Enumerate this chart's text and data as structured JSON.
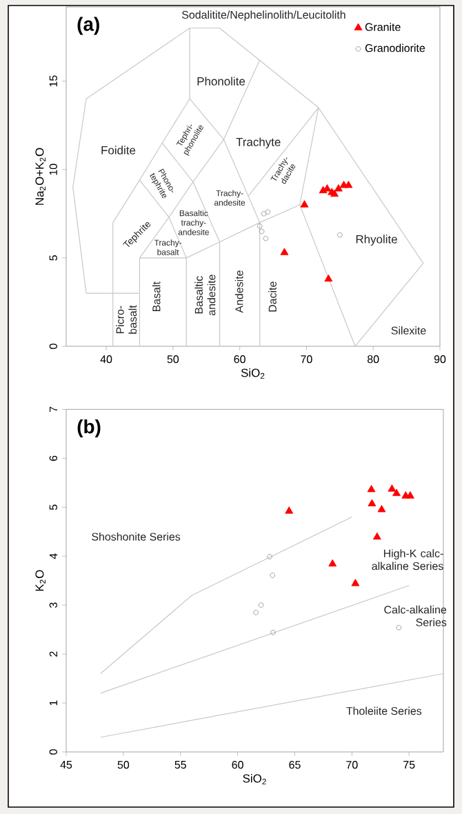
{
  "chart_data": [
    {
      "type": "scatter",
      "title": "(a)",
      "xlabel": "SiO$_{2}$",
      "ylabel": "Na$_{2}$O+K$_{2}$O",
      "xlim": [
        34,
        90
      ],
      "ylim": [
        0,
        19.2
      ],
      "xticks": [
        40,
        50,
        60,
        70,
        80,
        90
      ],
      "yticks": [
        0,
        5,
        10,
        15
      ],
      "legend": "top right",
      "series": [
        {
          "type": "line",
          "color": "#c8c8c8",
          "x": [
            45,
            37,
            35,
            37,
            52.5,
            57,
            71.8,
            87.5,
            77.3,
            null,
            41,
            41,
            45,
            48.4,
            52.5,
            52.5,
            null,
            45,
            45,
            49.4,
            53,
            57.6,
            63,
            null,
            52,
            52,
            null,
            57,
            57,
            null,
            63,
            63,
            null,
            45,
            52,
            57,
            63,
            69,
            77.3,
            null,
            49.4,
            52,
            null,
            53,
            57,
            null,
            57.6,
            63,
            null,
            45,
            49.4,
            null,
            48.4,
            53,
            null,
            52.5,
            57.6,
            null,
            69,
            71.8,
            null,
            61.3,
            71.8
          ],
          "values": [
            3,
            3,
            9,
            14,
            18,
            18,
            13.5,
            4.7,
            0,
            null,
            0,
            7,
            9.4,
            11.5,
            14,
            18,
            null,
            0,
            5,
            7.3,
            9.3,
            11.7,
            16.2,
            null,
            0,
            5,
            null,
            0,
            5.9,
            null,
            0,
            7,
            null,
            5,
            5,
            5.9,
            7,
            8,
            0,
            null,
            7.3,
            5,
            null,
            9.3,
            5.9,
            null,
            11.7,
            7,
            null,
            9.4,
            7.3,
            null,
            11.5,
            9.3,
            null,
            14,
            11.7,
            null,
            8,
            13.5,
            null,
            8.5,
            13.5
          ]
        },
        {
          "name": "Granite",
          "color": "#ff0000",
          "marker": "triangle",
          "x": [
            69.7,
            72.5,
            73.1,
            73.8,
            74.2,
            74.8,
            75.6,
            76.3,
            66.7,
            73.3
          ],
          "values": [
            8.0,
            8.8,
            8.9,
            8.7,
            8.6,
            8.9,
            9.1,
            9.1,
            5.3,
            3.8
          ]
        },
        {
          "name": "Granodiorite",
          "color": "#a0a0a0",
          "marker": "circle",
          "x": [
            63.6,
            64.2,
            63.0,
            63.3,
            63.9,
            75.0
          ],
          "values": [
            7.5,
            7.6,
            6.8,
            6.5,
            6.1,
            6.3
          ]
        }
      ],
      "annotations": [
        "Sodalitite/Nephelinolith/Leucitolith",
        "Phonolite",
        "Foidite",
        "Tephri-phonolite",
        "Trachyte",
        "Phono-tephrite",
        "Trachy-dacite",
        "Trachy-andesite",
        "Basaltic trachy-andesite",
        "Tephrite",
        "Trachy-basalt",
        "Rhyolite",
        "Picro-basalt",
        "Basalt",
        "Basaltic andesite",
        "Andesite",
        "Dacite",
        "Silexite"
      ]
    },
    {
      "type": "scatter",
      "title": "(b)",
      "xlabel": "SiO$_{2}$",
      "ylabel": "K$_{2}$O",
      "xlim": [
        45,
        78
      ],
      "ylim": [
        0,
        7
      ],
      "xticks": [
        45,
        50,
        55,
        60,
        65,
        70,
        75
      ],
      "yticks": [
        0,
        1,
        2,
        3,
        4,
        5,
        6,
        7
      ],
      "series": [
        {
          "type": "line",
          "color": "#c8c8c8",
          "x": [
            48,
            56,
            70
          ],
          "values": [
            1.6,
            3.2,
            4.8
          ]
        },
        {
          "type": "line",
          "color": "#c8c8c8",
          "x": [
            48,
            75
          ],
          "values": [
            1.2,
            3.4
          ]
        },
        {
          "type": "line",
          "color": "#c8c8c8",
          "x": [
            48,
            78
          ],
          "values": [
            0.3,
            1.6
          ]
        },
        {
          "color": "#ff0000",
          "marker": "triangle",
          "x": [
            64.5,
            71.7,
            71.75,
            72.6,
            73.5,
            73.9,
            74.7,
            75.1,
            72.2,
            68.3,
            70.3
          ],
          "values": [
            4.92,
            5.36,
            5.07,
            4.95,
            5.37,
            5.28,
            5.23,
            5.23,
            4.39,
            3.84,
            3.44
          ]
        },
        {
          "color": "#a0a0a0",
          "marker": "circle",
          "x": [
            62.8,
            63.05,
            62.05,
            61.6,
            63.1,
            74.1
          ],
          "values": [
            3.99,
            3.61,
            3.0,
            2.85,
            2.44,
            2.54
          ]
        }
      ],
      "annotations": [
        "Shoshonite Series",
        "High-K calc-alkaline Series",
        "Calc-alkaline Series",
        "Tholeiite Series"
      ]
    }
  ]
}
